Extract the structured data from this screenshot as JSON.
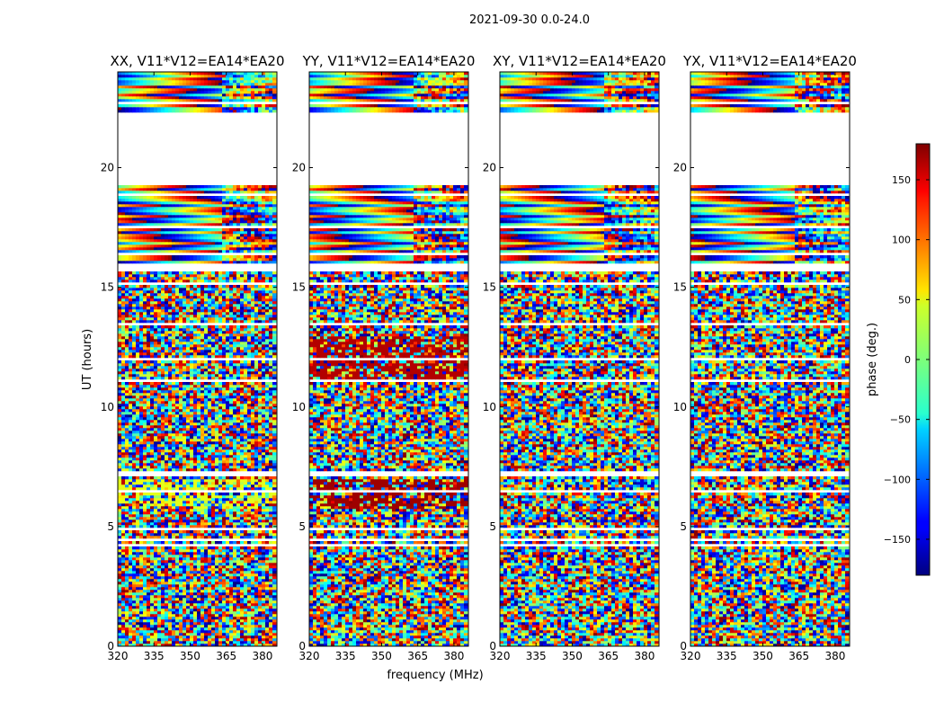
{
  "chart_data": {
    "type": "heatmap",
    "suptitle": "2021-09-30 0.0-24.0",
    "xlabel": "frequency (MHz)",
    "ylabel": "UT (hours)",
    "xlim": [
      320,
      386
    ],
    "ylim": [
      0,
      24
    ],
    "xticks": [
      320,
      335,
      350,
      365,
      380
    ],
    "yticks": [
      0,
      5,
      10,
      15,
      20
    ],
    "panels": [
      {
        "title": "XX, V11*V12=EA14*EA20",
        "pol": "XX"
      },
      {
        "title": "YY, V11*V12=EA14*EA20",
        "pol": "YY"
      },
      {
        "title": "XY, V11*V12=EA14*EA20",
        "pol": "XY"
      },
      {
        "title": "YX, V11*V12=EA14*EA20",
        "pol": "YX"
      }
    ],
    "colorbar": {
      "label": "phase (deg.)",
      "range": [
        -180,
        180
      ],
      "ticks": [
        150,
        100,
        50,
        0,
        -50,
        -100,
        -150
      ],
      "tick_labels": [
        "150",
        "100",
        "50",
        "0",
        "−50",
        "−100",
        "−150"
      ],
      "colormap": "jet"
    },
    "data_gaps_hours": [
      [
        19.3,
        22.2
      ],
      [
        15.7,
        16.0
      ],
      [
        11.0,
        11.2
      ],
      [
        7.1,
        7.3
      ],
      [
        4.9,
        5.0
      ],
      [
        4.4,
        4.5
      ]
    ]
  }
}
